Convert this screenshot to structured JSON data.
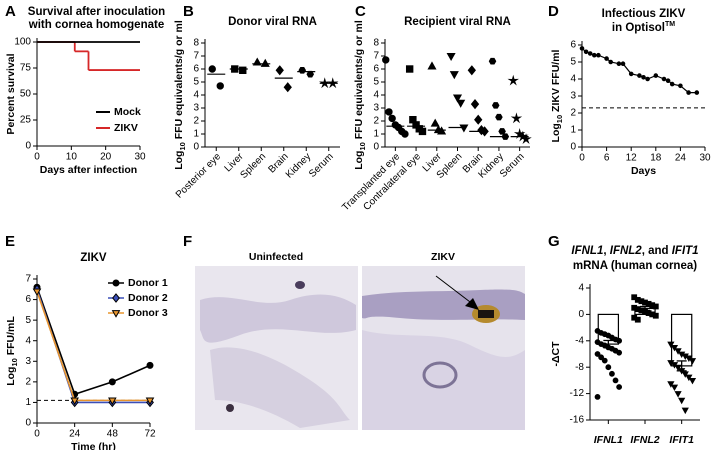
{
  "chart_data": [
    {
      "panel": "A",
      "type": "step",
      "title_lines": [
        [
          "Survival after inoculation"
        ],
        [
          "with cornea homogenate"
        ]
      ],
      "xlabel": "Days after infection",
      "ylabel_parts": [
        "Percent survival"
      ],
      "xlim": [
        0,
        30
      ],
      "xticks": [
        0,
        10,
        20,
        30
      ],
      "ylim": [
        0,
        100
      ],
      "yticks": [
        0,
        25,
        50,
        75,
        100
      ],
      "series": [
        {
          "name": "Mock",
          "color": "#000000",
          "x": [
            0
          ],
          "values": [
            100
          ]
        },
        {
          "name": "ZIKV",
          "color": "#d62728",
          "x": [
            0,
            11,
            15
          ],
          "values": [
            100,
            91,
            73
          ]
        }
      ],
      "legend": "lower right"
    },
    {
      "panel": "B",
      "type": "dot",
      "title_lines": [
        [
          "Donor viral RNA"
        ]
      ],
      "ylabel_parts": [
        "Log",
        "10",
        " FFU equivalents/g or ml"
      ],
      "categories": [
        "Posterior eye",
        "Liver",
        "Spleen",
        "Brain",
        "Kidney",
        "Serum"
      ],
      "markers": [
        "circle",
        "square",
        "triangle",
        "diamond",
        "hexagon",
        "star"
      ],
      "points": [
        [
          6.0,
          4.7
        ],
        [
          6.0,
          5.9
        ],
        [
          6.5,
          6.4
        ],
        [
          5.9,
          4.6
        ],
        [
          5.9,
          5.6
        ],
        [
          4.9,
          4.9
        ]
      ],
      "medians": [
        5.6,
        6.0,
        6.4,
        5.3,
        5.8,
        4.9
      ],
      "ylim": [
        0,
        8
      ],
      "yticks": [
        0,
        1,
        2,
        3,
        4,
        5,
        6,
        7,
        8
      ]
    },
    {
      "panel": "C",
      "type": "dot",
      "title_lines": [
        [
          "Recipient viral RNA"
        ]
      ],
      "ylabel_parts": [
        "Log",
        "10",
        " FFU equivalents/g or ml"
      ],
      "categories": [
        "Transplanted eye",
        "Contralateral eye",
        "Liver",
        "Spleen",
        "Brain",
        "Kidney",
        "Serum"
      ],
      "markers": [
        "circle",
        "square",
        "triangle",
        "down",
        "diamond",
        "hexagon",
        "star"
      ],
      "points": [
        [
          6.7,
          2.7,
          2.2,
          1.7,
          1.5,
          1.2,
          1.0
        ],
        [
          6.0,
          2.1,
          1.7,
          1.4,
          1.2
        ],
        [
          6.2,
          1.8,
          1.3,
          1.2
        ],
        [
          7.0,
          5.6,
          3.8,
          3.4,
          1.5
        ],
        [
          5.9,
          3.3,
          2.1,
          1.3,
          1.2
        ],
        [
          6.6,
          3.2,
          2.3,
          1.2,
          0.8
        ],
        [
          5.1,
          2.2,
          1.0,
          0.8,
          0.6
        ]
      ],
      "medians": [
        1.6,
        1.6,
        1.3,
        1.5,
        1.2,
        0.8,
        0.8
      ],
      "ylim": [
        0,
        8
      ],
      "yticks": [
        0,
        1,
        2,
        3,
        4,
        5,
        6,
        7,
        8
      ]
    },
    {
      "panel": "D",
      "type": "line",
      "title_lines": [
        [
          "Infectious ZIKV"
        ],
        [
          "in Optisol",
          "TM"
        ]
      ],
      "xlabel": "Days",
      "ylabel_parts": [
        "Log",
        "10",
        " ZIKV FFU/ml"
      ],
      "x": [
        0,
        1,
        2,
        3,
        4,
        6,
        7,
        9,
        10,
        12,
        14,
        15,
        16,
        18,
        20,
        21,
        22,
        24,
        26,
        28
      ],
      "series": [
        {
          "color": "#000000",
          "marker": "circle",
          "values": [
            5.8,
            5.6,
            5.5,
            5.4,
            5.4,
            5.2,
            5.0,
            4.9,
            4.9,
            4.3,
            4.2,
            4.1,
            4.0,
            4.2,
            4.0,
            3.9,
            3.7,
            3.6,
            3.2,
            3.2
          ]
        }
      ],
      "detection_limit": 2.3,
      "xlim": [
        0,
        30
      ],
      "xticks": [
        0,
        6,
        12,
        18,
        24,
        30
      ],
      "ylim": [
        0,
        6
      ],
      "yticks": [
        0,
        1,
        2,
        3,
        4,
        5,
        6
      ]
    },
    {
      "panel": "E",
      "type": "line",
      "title_lines": [
        [
          "ZIKV"
        ]
      ],
      "xlabel": "Time (hr)",
      "ylabel_parts": [
        "Log",
        "10",
        " FFU/mL"
      ],
      "x": [
        0,
        24,
        48,
        72
      ],
      "series": [
        {
          "name": "Donor 1",
          "color": "#000000",
          "marker": "circle",
          "values": [
            6.6,
            1.4,
            2.0,
            2.8
          ]
        },
        {
          "name": "Donor 2",
          "color": "#3b4fb8",
          "marker": "diamond",
          "values": [
            6.5,
            1.0,
            1.0,
            1.0
          ]
        },
        {
          "name": "Donor 3",
          "color": "#e8952e",
          "marker": "down",
          "values": [
            6.4,
            1.1,
            1.1,
            1.1
          ]
        }
      ],
      "detection_limit": 1.1,
      "xlim": [
        0,
        72
      ],
      "xticks": [
        0,
        24,
        48,
        72
      ],
      "ylim": [
        0,
        7
      ],
      "yticks": [
        0,
        1,
        2,
        3,
        4,
        5,
        6,
        7
      ],
      "legend": "upper right"
    },
    {
      "panel": "F",
      "type": "image",
      "labels": [
        "Uninfected",
        "ZIKV"
      ]
    },
    {
      "panel": "G",
      "type": "bar",
      "title_lines": [
        [
          "IFNL1",
          ", ",
          "IFNL2",
          ", and ",
          "IFIT1"
        ],
        [
          "mRNA (human cornea)"
        ]
      ],
      "ylabel_parts": [
        "-ΔCT"
      ],
      "categories": [
        "IFNL1",
        "IFNL2",
        "IFIT1"
      ],
      "markers": [
        "circle",
        "square",
        "down"
      ],
      "values": [
        -4.5,
        0.9,
        -7.8
      ],
      "errors": [
        0.55,
        0.3,
        0.75
      ],
      "points": [
        [
          -2.5,
          -2.8,
          -3,
          -3.2,
          -3.5,
          -3.8,
          -4,
          -4.2,
          -4.5,
          -4.7,
          -5,
          -5.2,
          -5.5,
          -5.8,
          -6,
          -6.5,
          -7,
          -8,
          -9,
          -10,
          -11,
          -12.5
        ],
        [
          2.6,
          2.2,
          2,
          1.8,
          1.6,
          1.4,
          1.2,
          1,
          0.8,
          0.6,
          0.4,
          0.2,
          0,
          -0.2,
          -0.5,
          -0.8
        ],
        [
          -4.5,
          -5,
          -5.5,
          -6,
          -6.3,
          -6.6,
          -7,
          -7.3,
          -7.6,
          -8,
          -8.5,
          -9,
          -9.5,
          -10,
          -10.5,
          -11,
          -12,
          -13,
          -14.5
        ]
      ],
      "ylim": [
        -16,
        4
      ],
      "yticks": [
        -16,
        -12,
        -8,
        -4,
        0,
        4
      ]
    }
  ]
}
